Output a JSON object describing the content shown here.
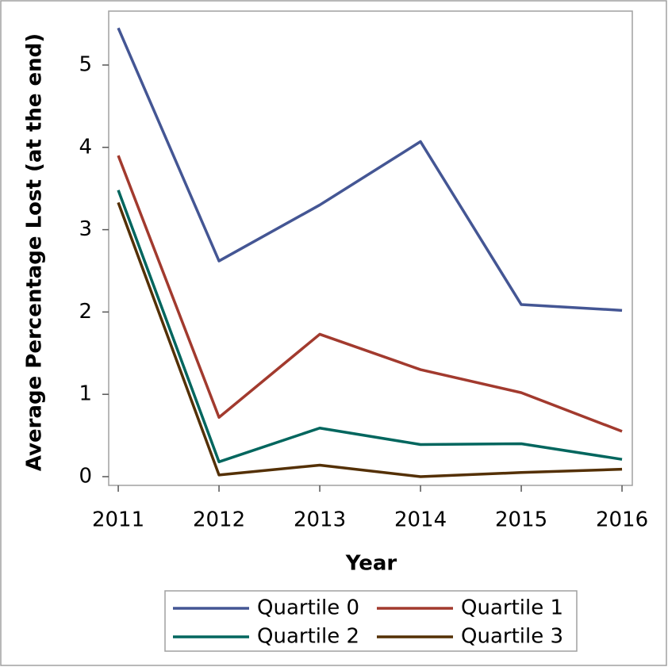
{
  "chart_data": {
    "type": "line",
    "x_label": "Year",
    "y_label": "Average Percentage Lost (at the end)",
    "x": [
      2011,
      2012,
      2013,
      2014,
      2015,
      2016
    ],
    "series": [
      {
        "name": "Quartile 0",
        "color": "#445694",
        "values": [
          5.45,
          2.62,
          3.3,
          4.07,
          2.09,
          2.02
        ]
      },
      {
        "name": "Quartile 1",
        "color": "#a23a2e",
        "values": [
          3.9,
          0.72,
          1.73,
          1.3,
          1.02,
          0.55
        ]
      },
      {
        "name": "Quartile 2",
        "color": "#01665e",
        "values": [
          3.48,
          0.18,
          0.59,
          0.39,
          0.4,
          0.21
        ]
      },
      {
        "name": "Quartile 3",
        "color": "#543005",
        "values": [
          3.33,
          0.02,
          0.14,
          0.0,
          0.05,
          0.09
        ]
      }
    ],
    "xlim": [
      2010.905,
      2016.102
    ],
    "ylim": [
      -0.106,
      5.655
    ],
    "xticks": [
      2011,
      2012,
      2013,
      2014,
      2015,
      2016
    ],
    "yticks": [
      0,
      1,
      2,
      3,
      4,
      5
    ],
    "legend": "bottom"
  }
}
